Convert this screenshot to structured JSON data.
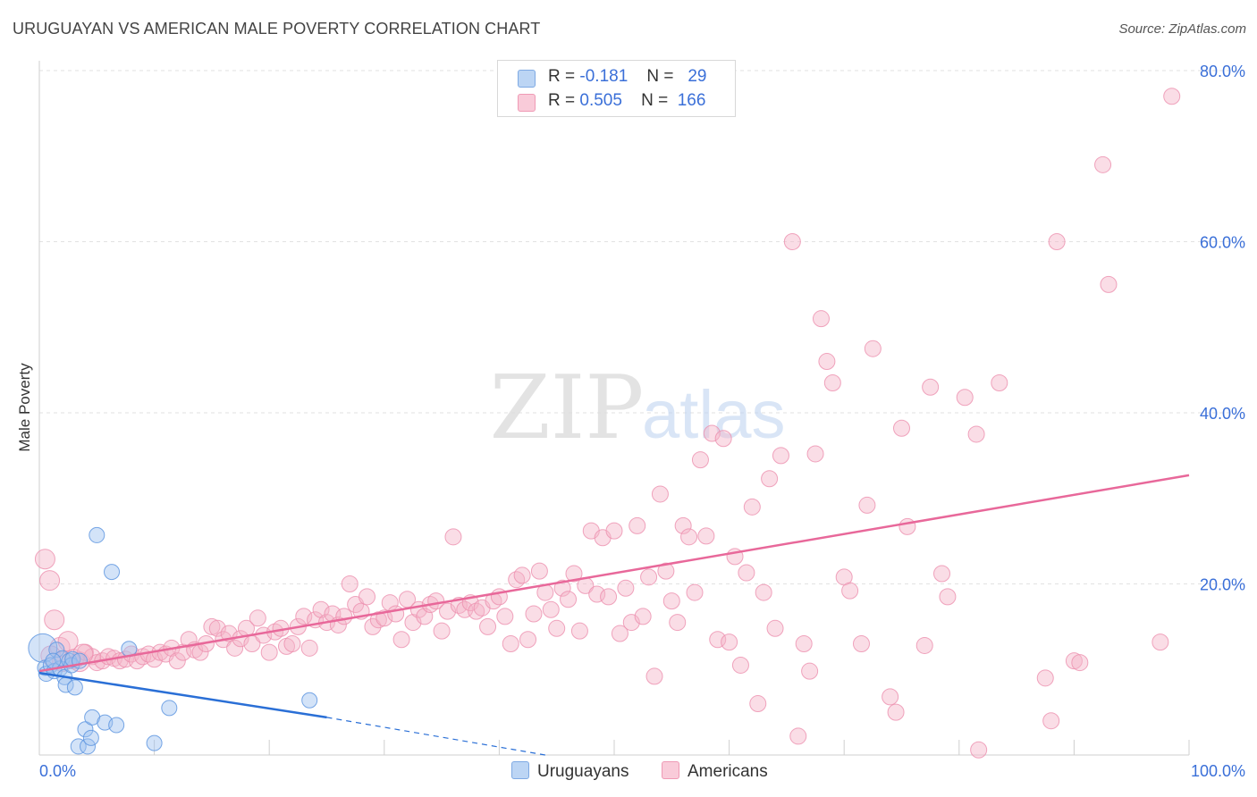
{
  "header": {
    "title": "URUGUAYAN VS AMERICAN MALE POVERTY CORRELATION CHART",
    "source": "Source: ZipAtlas.com"
  },
  "watermark": {
    "zip": "ZIP",
    "atlas": "atlas"
  },
  "legend_top": {
    "rows": [
      {
        "r_label": "R =",
        "r_value": "-0.181",
        "n_label": "N =",
        "n_value": "29",
        "color": "#9ec2ef"
      },
      {
        "r_label": "R =",
        "r_value": "0.505",
        "n_label": "N =",
        "n_value": "166",
        "color": "#f5b3c7"
      }
    ]
  },
  "legend_bottom": {
    "items": [
      {
        "label": "Uruguayans",
        "color": "#9ec2ef"
      },
      {
        "label": "Americans",
        "color": "#f5b3c7"
      }
    ]
  },
  "chart_data": {
    "type": "scatter",
    "title": "URUGUAYAN VS AMERICAN MALE POVERTY CORRELATION CHART",
    "xlabel": "",
    "ylabel": "Male Poverty",
    "xlim": [
      0,
      100
    ],
    "ylim": [
      0,
      80
    ],
    "x_tick_labels": [
      "0.0%",
      "100.0%"
    ],
    "y_tick_labels": [
      "20.0%",
      "40.0%",
      "60.0%",
      "80.0%"
    ],
    "y_ticks": [
      20,
      40,
      60,
      80
    ],
    "grid": true,
    "legend_position": "top-center",
    "colors": {
      "uruguayans": "#6ea3e6",
      "americans": "#ef8aab",
      "uruguayans_line": "#2a6fd6",
      "americans_line": "#e8689a"
    },
    "series": [
      {
        "name": "Uruguayans",
        "trend": {
          "x": [
            0,
            25
          ],
          "y": [
            9.6,
            4.4
          ],
          "dashed_to": [
            44,
            0
          ]
        },
        "points": [
          [
            0.3,
            12.5
          ],
          [
            0.5,
            10.2
          ],
          [
            0.6,
            9.5
          ],
          [
            1.0,
            10.5
          ],
          [
            1.3,
            9.8
          ],
          [
            1.5,
            12.3
          ],
          [
            1.8,
            10.1
          ],
          [
            2.0,
            11.3
          ],
          [
            2.2,
            9.1
          ],
          [
            2.3,
            8.2
          ],
          [
            2.6,
            11.0
          ],
          [
            2.8,
            10.5
          ],
          [
            2.9,
            11.2
          ],
          [
            3.1,
            7.9
          ],
          [
            3.5,
            11.0
          ],
          [
            5.0,
            25.7
          ],
          [
            6.3,
            21.4
          ],
          [
            7.8,
            12.4
          ],
          [
            3.4,
            1.0
          ],
          [
            4.2,
            1.0
          ],
          [
            4.0,
            3.0
          ],
          [
            4.5,
            2.0
          ],
          [
            4.6,
            4.4
          ],
          [
            5.7,
            3.8
          ],
          [
            6.7,
            3.5
          ],
          [
            10.0,
            1.4
          ],
          [
            11.3,
            5.5
          ],
          [
            23.5,
            6.4
          ],
          [
            1.2,
            11.0
          ]
        ]
      },
      {
        "name": "Americans",
        "trend": {
          "x": [
            0,
            100
          ],
          "y": [
            9.8,
            32.7
          ]
        },
        "points": [
          [
            0.5,
            22.9
          ],
          [
            0.9,
            20.4
          ],
          [
            1.3,
            15.8
          ],
          [
            1.8,
            12.6
          ],
          [
            2.5,
            13.3
          ],
          [
            3.0,
            11.2
          ],
          [
            3.5,
            10.9
          ],
          [
            4.0,
            12.0
          ],
          [
            4.6,
            11.5
          ],
          [
            5.0,
            10.8
          ],
          [
            5.5,
            11.0
          ],
          [
            6.0,
            11.5
          ],
          [
            6.5,
            11.3
          ],
          [
            7.0,
            11.0
          ],
          [
            7.5,
            11.2
          ],
          [
            8.0,
            11.8
          ],
          [
            8.5,
            11.0
          ],
          [
            9.0,
            11.5
          ],
          [
            9.5,
            11.8
          ],
          [
            10.0,
            11.2
          ],
          [
            10.5,
            12.0
          ],
          [
            11.0,
            11.8
          ],
          [
            11.5,
            12.5
          ],
          [
            12.0,
            11.0
          ],
          [
            12.5,
            12.0
          ],
          [
            13.0,
            13.5
          ],
          [
            13.5,
            12.3
          ],
          [
            14.0,
            12.0
          ],
          [
            14.5,
            13.0
          ],
          [
            15.0,
            15.0
          ],
          [
            15.5,
            14.8
          ],
          [
            16.0,
            13.5
          ],
          [
            16.5,
            14.2
          ],
          [
            17.0,
            12.5
          ],
          [
            17.5,
            13.6
          ],
          [
            18.0,
            14.8
          ],
          [
            18.5,
            13.0
          ],
          [
            19.0,
            16.0
          ],
          [
            19.5,
            14.0
          ],
          [
            20.0,
            12.0
          ],
          [
            20.5,
            14.4
          ],
          [
            21.0,
            14.8
          ],
          [
            21.5,
            12.7
          ],
          [
            22.0,
            13.0
          ],
          [
            22.5,
            15.0
          ],
          [
            23.0,
            16.2
          ],
          [
            23.5,
            12.5
          ],
          [
            24.0,
            15.8
          ],
          [
            24.5,
            17.0
          ],
          [
            25.0,
            15.5
          ],
          [
            25.5,
            16.5
          ],
          [
            26.0,
            15.2
          ],
          [
            26.5,
            16.2
          ],
          [
            27.0,
            20.0
          ],
          [
            27.5,
            17.6
          ],
          [
            28.0,
            16.8
          ],
          [
            28.5,
            18.5
          ],
          [
            29.0,
            15.0
          ],
          [
            29.5,
            15.8
          ],
          [
            30.0,
            16.0
          ],
          [
            30.5,
            17.8
          ],
          [
            31.0,
            16.5
          ],
          [
            31.5,
            13.5
          ],
          [
            32.0,
            18.2
          ],
          [
            32.5,
            15.5
          ],
          [
            33.0,
            17.0
          ],
          [
            33.5,
            16.2
          ],
          [
            34.0,
            17.6
          ],
          [
            34.5,
            18.0
          ],
          [
            35.0,
            14.5
          ],
          [
            35.5,
            16.8
          ],
          [
            36.0,
            25.5
          ],
          [
            36.5,
            17.5
          ],
          [
            37.0,
            17.0
          ],
          [
            37.5,
            17.8
          ],
          [
            38.0,
            16.8
          ],
          [
            38.5,
            17.2
          ],
          [
            39.0,
            15.0
          ],
          [
            39.5,
            18.0
          ],
          [
            40.0,
            18.5
          ],
          [
            40.5,
            16.2
          ],
          [
            41.0,
            13.0
          ],
          [
            41.5,
            20.5
          ],
          [
            42.0,
            21.0
          ],
          [
            42.5,
            13.5
          ],
          [
            43.0,
            16.5
          ],
          [
            43.5,
            21.5
          ],
          [
            44.0,
            19.0
          ],
          [
            44.5,
            17.0
          ],
          [
            45.0,
            14.8
          ],
          [
            45.5,
            19.5
          ],
          [
            46.0,
            18.2
          ],
          [
            46.5,
            21.2
          ],
          [
            47.0,
            14.5
          ],
          [
            47.5,
            19.8
          ],
          [
            48.0,
            26.2
          ],
          [
            48.5,
            18.8
          ],
          [
            49.0,
            25.4
          ],
          [
            49.5,
            18.5
          ],
          [
            50.0,
            26.2
          ],
          [
            50.5,
            14.2
          ],
          [
            51.0,
            19.5
          ],
          [
            51.5,
            15.5
          ],
          [
            52.0,
            26.8
          ],
          [
            52.5,
            16.2
          ],
          [
            53.0,
            20.8
          ],
          [
            53.5,
            9.2
          ],
          [
            54.0,
            30.5
          ],
          [
            54.5,
            21.5
          ],
          [
            55.0,
            18.0
          ],
          [
            55.5,
            15.5
          ],
          [
            56.0,
            26.8
          ],
          [
            56.5,
            25.5
          ],
          [
            57.0,
            19.0
          ],
          [
            57.5,
            34.5
          ],
          [
            58.0,
            25.6
          ],
          [
            58.5,
            37.6
          ],
          [
            59.0,
            13.5
          ],
          [
            59.5,
            37.0
          ],
          [
            60.0,
            13.2
          ],
          [
            60.5,
            23.2
          ],
          [
            61.0,
            10.5
          ],
          [
            61.5,
            21.3
          ],
          [
            62.0,
            29.0
          ],
          [
            62.5,
            6.0
          ],
          [
            63.0,
            19.0
          ],
          [
            63.5,
            32.3
          ],
          [
            64.0,
            14.8
          ],
          [
            64.5,
            35.0
          ],
          [
            65.5,
            60.0
          ],
          [
            66.0,
            2.2
          ],
          [
            66.5,
            13.0
          ],
          [
            67.0,
            9.8
          ],
          [
            67.5,
            35.2
          ],
          [
            68.0,
            51.0
          ],
          [
            68.5,
            46.0
          ],
          [
            69.0,
            43.5
          ],
          [
            70.0,
            20.8
          ],
          [
            70.5,
            19.2
          ],
          [
            71.5,
            13.0
          ],
          [
            72.0,
            29.2
          ],
          [
            72.5,
            47.5
          ],
          [
            74.0,
            6.8
          ],
          [
            74.5,
            5.0
          ],
          [
            75.0,
            38.2
          ],
          [
            75.5,
            26.7
          ],
          [
            77.0,
            12.8
          ],
          [
            77.5,
            43.0
          ],
          [
            78.5,
            21.2
          ],
          [
            79.0,
            18.5
          ],
          [
            80.5,
            41.8
          ],
          [
            81.5,
            37.5
          ],
          [
            81.7,
            0.6
          ],
          [
            83.5,
            43.5
          ],
          [
            87.5,
            9.0
          ],
          [
            88.0,
            4.0
          ],
          [
            88.5,
            60.0
          ],
          [
            90.0,
            11.0
          ],
          [
            90.5,
            10.8
          ],
          [
            92.5,
            69.0
          ],
          [
            93.0,
            55.0
          ],
          [
            97.5,
            13.2
          ],
          [
            98.5,
            77.0
          ],
          [
            3.8,
            11.8
          ],
          [
            1.0,
            11.6
          ],
          [
            2.0,
            10.9
          ]
        ]
      }
    ]
  }
}
